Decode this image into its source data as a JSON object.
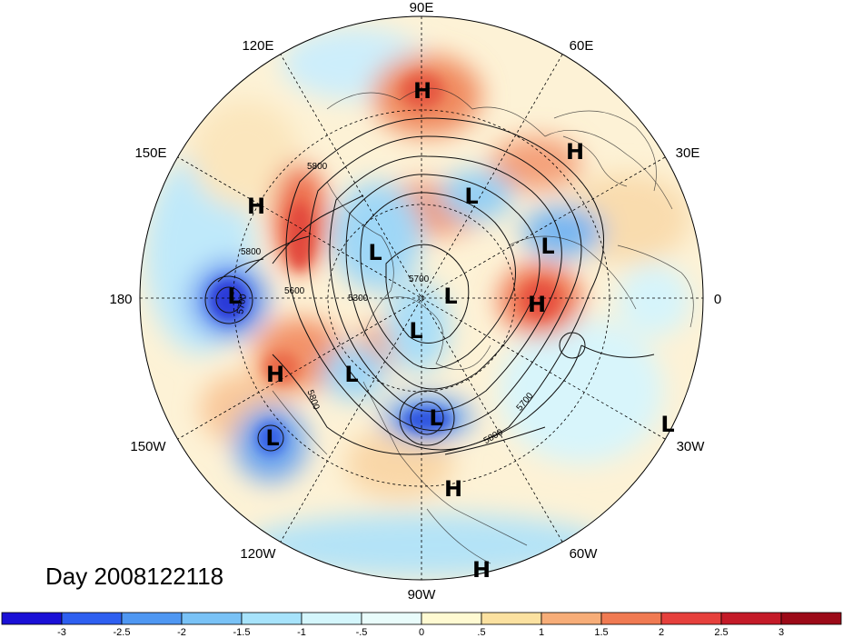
{
  "title": "Day 2008122118",
  "longitude_labels": [
    "90E",
    "60E",
    "30E",
    "0",
    "30W",
    "60W",
    "90W",
    "120W",
    "150W",
    "180",
    "150E",
    "120E"
  ],
  "pressure_centers": [
    {
      "type": "H",
      "label": "H"
    },
    {
      "type": "H",
      "label": "H"
    },
    {
      "type": "H",
      "label": "H"
    },
    {
      "type": "H",
      "label": "H"
    },
    {
      "type": "H",
      "label": "H"
    },
    {
      "type": "H",
      "label": "H"
    },
    {
      "type": "H",
      "label": "H"
    },
    {
      "type": "L",
      "label": "L"
    },
    {
      "type": "L",
      "label": "L"
    },
    {
      "type": "L",
      "label": "L"
    },
    {
      "type": "L",
      "label": "L"
    },
    {
      "type": "L",
      "label": "L"
    },
    {
      "type": "L",
      "label": "L"
    },
    {
      "type": "L",
      "label": "L"
    },
    {
      "type": "L",
      "label": "L"
    },
    {
      "type": "L",
      "label": "L"
    },
    {
      "type": "L",
      "label": "L"
    }
  ],
  "contour_labels": [
    "5800",
    "5800",
    "5600",
    "5300",
    "5700",
    "5800",
    "5700",
    "5800",
    "5700"
  ],
  "colorbar": {
    "ticks": [
      "-3",
      "-2.5",
      "-2",
      "-1.5",
      "-1",
      "-.5",
      "0",
      ".5",
      "1",
      "1.5",
      "2",
      "2.5",
      "3"
    ],
    "colors": [
      "#1a10d6",
      "#2e5ff0",
      "#4f97f2",
      "#79c2f6",
      "#a7e3fb",
      "#d4f6fc",
      "#e9fcfb",
      "#fffad2",
      "#fbe1a0",
      "#f7ad78",
      "#f07a52",
      "#e6403c",
      "#c41a28",
      "#9c0a18"
    ]
  }
}
